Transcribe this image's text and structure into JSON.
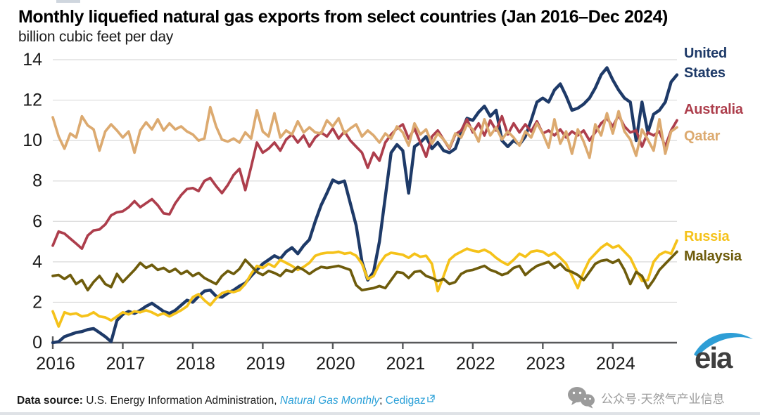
{
  "title": "Monthly liquefied natural gas exports from select countries (Jan 2016–Dec 2024)",
  "subtitle": "billion cubic feet per day",
  "source": {
    "label": "Data source:",
    "body": " U.S. Energy Information Administration, ",
    "link_monthly": "Natural Gas Monthly",
    "separator": "; ",
    "link_cedigaz": "Cedigaz"
  },
  "watermark": {
    "text": "公众号·天然气产业信息",
    "icon": "wechat-icon"
  },
  "logo": {
    "text": "eia"
  },
  "colors": {
    "axis": "#58595b",
    "grid": "#dadada",
    "tick_label": "#1a1a1a",
    "link": "#2aa0d8",
    "watermark_gray": "#9b9b9b",
    "logo_swoosh_blue": "#2e9ed6",
    "logo_text_gray": "#3f3f3f"
  },
  "chart_data": {
    "type": "line",
    "title": "Monthly liquefied natural gas exports from select countries (Jan 2016–Dec 2024)",
    "ylabel": "billion cubic feet per day",
    "xlabel": "",
    "ylim": [
      0,
      14
    ],
    "yticks": [
      0,
      2,
      4,
      6,
      8,
      10,
      12,
      14
    ],
    "xticks": [
      2016,
      2017,
      2018,
      2019,
      2020,
      2021,
      2022,
      2023,
      2024
    ],
    "x_start": "2016-01",
    "x_end": "2024-12",
    "points_per_year": 12,
    "grid": true,
    "legend_position": "right",
    "series": [
      {
        "name": "United States",
        "color": "#1e3a68",
        "values": [
          0.0,
          0.05,
          0.3,
          0.4,
          0.5,
          0.55,
          0.65,
          0.7,
          0.5,
          0.3,
          0.05,
          1.1,
          1.4,
          1.55,
          1.45,
          1.6,
          1.8,
          1.95,
          1.75,
          1.55,
          1.45,
          1.6,
          1.85,
          2.1,
          2.0,
          2.3,
          2.55,
          2.6,
          2.3,
          2.25,
          2.45,
          2.6,
          2.8,
          2.95,
          3.3,
          3.6,
          3.9,
          4.1,
          4.3,
          4.15,
          4.5,
          4.7,
          4.4,
          4.8,
          5.1,
          6.0,
          6.8,
          7.4,
          8.05,
          7.9,
          8.0,
          6.9,
          5.8,
          4.0,
          3.1,
          3.5,
          5.0,
          7.2,
          9.4,
          9.8,
          9.5,
          7.4,
          9.7,
          9.9,
          10.2,
          9.6,
          9.9,
          9.5,
          9.4,
          9.6,
          10.4,
          11.1,
          11.0,
          11.4,
          11.7,
          11.2,
          11.5,
          10.0,
          9.7,
          10.0,
          9.8,
          10.2,
          11.0,
          11.9,
          12.1,
          11.9,
          12.5,
          12.8,
          12.2,
          11.5,
          11.6,
          11.8,
          12.1,
          12.6,
          13.25,
          13.6,
          13.0,
          12.5,
          12.1,
          11.9,
          10.0,
          11.9,
          10.4,
          11.3,
          11.5,
          11.9,
          12.9,
          13.25
        ]
      },
      {
        "name": "Australia",
        "color": "#ad3e4c",
        "values": [
          4.8,
          5.5,
          5.4,
          5.15,
          4.9,
          4.65,
          5.3,
          5.55,
          5.6,
          5.85,
          6.3,
          6.45,
          6.5,
          6.7,
          7.0,
          6.7,
          6.9,
          7.1,
          6.8,
          6.4,
          6.35,
          6.9,
          7.3,
          7.6,
          7.65,
          7.5,
          8.0,
          8.15,
          7.75,
          7.4,
          7.8,
          8.3,
          8.6,
          7.55,
          8.7,
          9.9,
          9.4,
          9.6,
          9.9,
          9.5,
          10.05,
          10.3,
          9.9,
          10.25,
          9.7,
          10.15,
          10.4,
          10.2,
          10.6,
          10.1,
          10.45,
          10.0,
          9.7,
          9.4,
          8.65,
          9.4,
          9.0,
          9.9,
          10.3,
          10.6,
          10.8,
          10.1,
          10.6,
          9.9,
          9.2,
          10.2,
          10.5,
          10.05,
          9.6,
          10.3,
          10.5,
          11.05,
          10.4,
          10.85,
          10.25,
          11.0,
          10.5,
          11.2,
          10.3,
          10.85,
          10.4,
          10.8,
          10.45,
          10.95,
          10.35,
          10.5,
          10.25,
          10.55,
          10.15,
          10.45,
          10.25,
          10.5,
          10.0,
          10.4,
          10.85,
          11.1,
          10.7,
          11.25,
          10.7,
          10.4,
          10.5,
          9.7,
          10.4,
          10.25,
          10.45,
          9.7,
          10.5,
          11.0
        ]
      },
      {
        "name": "Qatar",
        "color": "#dcaa70",
        "values": [
          11.15,
          10.2,
          9.6,
          10.35,
          10.15,
          11.2,
          10.75,
          10.55,
          9.5,
          10.45,
          10.8,
          10.5,
          10.15,
          10.45,
          9.4,
          10.5,
          10.9,
          10.55,
          11.05,
          10.5,
          10.85,
          10.55,
          10.7,
          10.45,
          10.3,
          10.0,
          10.1,
          11.65,
          10.7,
          10.05,
          9.95,
          10.1,
          9.9,
          10.4,
          10.1,
          11.5,
          10.45,
          10.2,
          11.35,
          10.15,
          10.5,
          10.3,
          10.95,
          10.4,
          10.65,
          10.4,
          10.35,
          11.0,
          10.7,
          11.1,
          10.35,
          10.6,
          10.8,
          10.2,
          10.5,
          10.25,
          9.9,
          10.35,
          10.1,
          10.7,
          10.4,
          9.75,
          10.85,
          10.3,
          10.55,
          9.85,
          10.35,
          10.05,
          9.65,
          10.35,
          10.15,
          10.8,
          10.55,
          9.95,
          11.05,
          10.25,
          10.65,
          10.05,
          10.45,
          10.15,
          9.75,
          10.45,
          10.15,
          10.85,
          10.35,
          9.65,
          11.05,
          9.85,
          10.45,
          9.35,
          10.55,
          9.95,
          9.15,
          10.8,
          10.25,
          11.35,
          10.35,
          11.45,
          10.45,
          10.05,
          9.25,
          10.55,
          10.05,
          9.5,
          11.05,
          9.35,
          10.45,
          10.65
        ]
      },
      {
        "name": "Russia",
        "color": "#f5c21a",
        "values": [
          1.55,
          0.8,
          1.5,
          1.4,
          1.45,
          1.3,
          1.35,
          1.5,
          1.3,
          1.25,
          1.1,
          1.3,
          1.5,
          1.4,
          1.55,
          1.5,
          1.6,
          1.5,
          1.35,
          1.45,
          1.3,
          1.45,
          1.6,
          1.8,
          2.25,
          2.4,
          2.1,
          1.85,
          2.2,
          2.45,
          2.55,
          2.5,
          2.6,
          2.9,
          3.4,
          3.8,
          3.7,
          3.9,
          3.75,
          4.1,
          3.95,
          3.8,
          3.6,
          3.75,
          3.95,
          4.3,
          4.4,
          4.45,
          4.45,
          4.5,
          4.4,
          4.45,
          4.3,
          3.9,
          3.15,
          3.3,
          3.9,
          4.3,
          4.45,
          4.4,
          4.35,
          4.2,
          4.4,
          4.25,
          4.3,
          3.9,
          2.55,
          3.3,
          4.1,
          4.35,
          4.5,
          4.65,
          4.55,
          4.5,
          4.6,
          4.45,
          4.2,
          4.0,
          3.85,
          4.1,
          4.4,
          4.25,
          4.5,
          4.55,
          4.5,
          4.3,
          4.45,
          4.2,
          3.9,
          3.3,
          2.7,
          3.5,
          4.1,
          4.4,
          4.7,
          4.9,
          4.7,
          4.8,
          4.5,
          4.2,
          3.6,
          3.05,
          3.1,
          4.0,
          4.35,
          4.5,
          4.4,
          5.05
        ]
      },
      {
        "name": "Malaysia",
        "color": "#6e5c0c",
        "values": [
          3.3,
          3.35,
          3.15,
          3.35,
          2.9,
          3.1,
          2.6,
          3.0,
          3.3,
          2.9,
          2.75,
          3.4,
          3.0,
          3.3,
          3.6,
          3.95,
          3.7,
          3.85,
          3.6,
          3.7,
          3.5,
          3.65,
          3.4,
          3.55,
          3.3,
          3.45,
          3.2,
          3.05,
          2.9,
          3.3,
          3.55,
          3.4,
          3.65,
          4.1,
          3.8,
          3.5,
          3.35,
          3.55,
          3.45,
          3.3,
          3.6,
          3.5,
          3.75,
          3.6,
          3.4,
          3.6,
          3.75,
          3.7,
          3.75,
          3.8,
          3.7,
          3.6,
          2.85,
          2.6,
          2.65,
          2.7,
          2.8,
          2.7,
          3.1,
          3.5,
          3.45,
          3.2,
          3.5,
          3.55,
          3.3,
          3.2,
          3.05,
          3.15,
          2.9,
          3.0,
          3.4,
          3.55,
          3.6,
          3.7,
          3.8,
          3.6,
          3.5,
          3.35,
          3.45,
          3.7,
          3.8,
          3.35,
          3.6,
          3.8,
          3.9,
          4.0,
          3.7,
          3.9,
          3.6,
          3.5,
          3.35,
          3.1,
          3.5,
          3.9,
          4.05,
          4.1,
          3.95,
          4.1,
          3.6,
          2.9,
          3.5,
          3.3,
          2.7,
          3.1,
          3.6,
          3.9,
          4.2,
          4.5
        ]
      }
    ]
  }
}
